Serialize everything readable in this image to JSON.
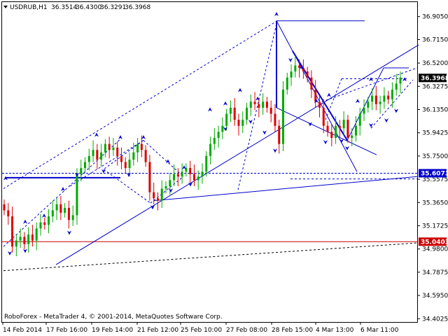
{
  "chart_data": {
    "type": "candlestick",
    "title": "USDRUB,H1",
    "ohlc": {
      "open": "36.3514",
      "high": "36.4300",
      "low": "36.3291",
      "close": "36.3968"
    },
    "footer": "RoboForex - MetaTrader 4, © 2001-2014, MetaQuotes Software Corp.",
    "ylim": [
      34.375,
      37.025
    ],
    "y_ticks": [
      "36.9050",
      "36.7150",
      "36.5200",
      "36.3275",
      "36.1350",
      "35.9425",
      "35.7500",
      "35.5575",
      "35.3650",
      "35.1725",
      "34.9800",
      "34.7875",
      "34.5950",
      "34.4025"
    ],
    "x_ticks": [
      "14 Feb 2014",
      "17 Feb 16:00",
      "19 Feb 14:00",
      "21 Feb 12:00",
      "25 Feb 10:00",
      "27 Feb 08:00",
      "28 Feb 15:00",
      "4 Mar 13:00",
      "6 Mar 11:00"
    ],
    "price_tags": [
      {
        "value": "36.3968",
        "y": 36.3968,
        "bg": "#000000",
        "fg": "#ffffff"
      },
      {
        "value": "35.6073",
        "y": 35.6073,
        "bg": "#0000cc",
        "fg": "#ffffff"
      },
      {
        "value": "35.0403",
        "y": 35.0403,
        "bg": "#cc0000",
        "fg": "#ffffff"
      }
    ],
    "horizontal_levels": [
      {
        "y": 35.6073,
        "color": "#0000cc",
        "style": "dashed"
      },
      {
        "y": 35.0403,
        "color": "#cc0000",
        "style": "solid"
      }
    ],
    "series_close": [
      35.3,
      35.25,
      35.0,
      35.05,
      35.08,
      35.02,
      35.1,
      35.05,
      35.15,
      35.2,
      35.18,
      35.25,
      35.3,
      35.35,
      35.28,
      35.32,
      35.22,
      35.26,
      35.6,
      35.65,
      35.7,
      35.75,
      35.8,
      35.72,
      35.78,
      35.85,
      35.8,
      35.82,
      35.75,
      35.7,
      35.65,
      35.72,
      35.78,
      35.85,
      35.8,
      35.7,
      35.45,
      35.4,
      35.38,
      35.48,
      35.5,
      35.55,
      35.6,
      35.58,
      35.62,
      35.65,
      35.6,
      35.55,
      35.58,
      35.62,
      35.75,
      35.85,
      35.9,
      35.95,
      36.0,
      36.1,
      36.15,
      36.05,
      36.0,
      36.05,
      36.15,
      36.2,
      36.18,
      36.15,
      36.2,
      36.15,
      36.1,
      36.0,
      35.85,
      36.3,
      36.4,
      36.45,
      36.5,
      36.48,
      36.45,
      36.4,
      36.3,
      36.2,
      36.15,
      36.0,
      35.95,
      35.9,
      36.0,
      35.98,
      36.05,
      35.9,
      35.92,
      36.0,
      36.1,
      36.15,
      36.2,
      36.25,
      36.18,
      36.2,
      36.25,
      36.22,
      36.3,
      36.35,
      36.4
    ],
    "trend_lines": [
      {
        "from": [
          8,
          35.57
        ],
        "to": [
          172,
          35.57
        ],
        "color": "#0000cc",
        "style": "solid",
        "width": 2
      },
      {
        "from": [
          395,
          36.87
        ],
        "to": [
          521,
          36.87
        ],
        "color": "#0000cc",
        "style": "solid",
        "width": 1
      },
      {
        "from": [
          395,
          36.87
        ],
        "to": [
          395,
          36.15
        ],
        "color": "#0000cc",
        "style": "solid",
        "width": 2
      },
      {
        "from": [
          395,
          36.15
        ],
        "to": [
          538,
          35.76
        ],
        "color": "#0000cc",
        "style": "solid",
        "width": 1
      },
      {
        "from": [
          395,
          36.87
        ],
        "to": [
          510,
          35.62
        ],
        "color": "#0000cc",
        "style": "solid",
        "width": 1
      },
      {
        "from": [
          418,
          36.62
        ],
        "to": [
          496,
          35.88
        ],
        "color": "#0000cc",
        "style": "solid",
        "width": 2
      },
      {
        "from": [
          496,
          35.88
        ],
        "to": [
          548,
          36.48
        ],
        "color": "#0000cc",
        "style": "solid",
        "width": 1
      },
      {
        "from": [
          548,
          36.48
        ],
        "to": [
          584,
          36.48
        ],
        "color": "#0000cc",
        "style": "solid",
        "width": 1
      },
      {
        "from": [
          80,
          34.85
        ],
        "to": [
          598,
          36.67
        ],
        "color": "#0000cc",
        "style": "solid",
        "width": 1
      },
      {
        "from": [
          220,
          35.38
        ],
        "to": [
          596,
          35.58
        ],
        "color": "#0000cc",
        "style": "solid",
        "width": 1
      },
      {
        "from": [
          415,
          35.56
        ],
        "to": [
          596,
          35.56
        ],
        "color": "#0000cc",
        "style": "dashed",
        "width": 1
      },
      {
        "from": [
          5,
          34.8
        ],
        "to": [
          596,
          35.03
        ],
        "color": "#000000",
        "style": "dashed",
        "width": 1
      },
      {
        "from": [
          5,
          35.48
        ],
        "to": [
          396,
          36.87
        ],
        "color": "#0000cc",
        "style": "dashed",
        "width": 1
      },
      {
        "from": [
          340,
          35.47
        ],
        "to": [
          396,
          36.87
        ],
        "color": "#0000cc",
        "style": "dashed",
        "width": 1
      },
      {
        "from": [
          5,
          35.0
        ],
        "to": [
          172,
          35.89
        ],
        "color": "#0000cc",
        "style": "dashed",
        "width": 1
      },
      {
        "from": [
          8,
          35.57
        ],
        "to": [
          160,
          35.57
        ],
        "color": "#0000cc",
        "style": "dashed",
        "width": 1
      },
      {
        "from": [
          100,
          35.5
        ],
        "to": [
          205,
          35.88
        ],
        "color": "#0000cc",
        "style": "dashed",
        "width": 1
      },
      {
        "from": [
          205,
          35.88
        ],
        "to": [
          262,
          35.58
        ],
        "color": "#0000cc",
        "style": "dashed",
        "width": 1
      },
      {
        "from": [
          205,
          35.88
        ],
        "to": [
          148,
          35.64
        ],
        "color": "#0000cc",
        "style": "dashed",
        "width": 1
      },
      {
        "from": [
          148,
          35.64
        ],
        "to": [
          215,
          35.36
        ],
        "color": "#0000cc",
        "style": "dashed",
        "width": 1
      },
      {
        "from": [
          215,
          35.36
        ],
        "to": [
          262,
          35.58
        ],
        "color": "#0000cc",
        "style": "dashed",
        "width": 1
      },
      {
        "from": [
          488,
          36.39
        ],
        "to": [
          584,
          36.39
        ],
        "color": "#0000cc",
        "style": "dashed",
        "width": 1
      },
      {
        "from": [
          460,
          36.2
        ],
        "to": [
          596,
          36.48
        ],
        "color": "#0000cc",
        "style": "dashed",
        "width": 1
      },
      {
        "from": [
          488,
          36.39
        ],
        "to": [
          465,
          36.05
        ],
        "color": "#0000cc",
        "style": "dashed",
        "width": 1
      },
      {
        "from": [
          530,
          35.98
        ],
        "to": [
          590,
          36.38
        ],
        "color": "#0000cc",
        "style": "dashed",
        "width": 1
      }
    ],
    "fractal_markers": [
      {
        "x": 8,
        "y": 35.56,
        "dir": "up"
      },
      {
        "x": 14,
        "y": 34.95,
        "dir": "down"
      },
      {
        "x": 36,
        "y": 35.2,
        "dir": "up"
      },
      {
        "x": 36,
        "y": 34.97,
        "dir": "down"
      },
      {
        "x": 63,
        "y": 35.25,
        "dir": "up"
      },
      {
        "x": 90,
        "y": 35.47,
        "dir": "up"
      },
      {
        "x": 99,
        "y": 35.12,
        "dir": "down"
      },
      {
        "x": 110,
        "y": 35.6,
        "dir": "down"
      },
      {
        "x": 138,
        "y": 35.92,
        "dir": "up"
      },
      {
        "x": 148,
        "y": 35.63,
        "dir": "down"
      },
      {
        "x": 172,
        "y": 35.9,
        "dir": "up"
      },
      {
        "x": 184,
        "y": 35.6,
        "dir": "down"
      },
      {
        "x": 205,
        "y": 35.9,
        "dir": "up"
      },
      {
        "x": 218,
        "y": 35.33,
        "dir": "down"
      },
      {
        "x": 240,
        "y": 35.7,
        "dir": "up"
      },
      {
        "x": 244,
        "y": 35.47,
        "dir": "down"
      },
      {
        "x": 263,
        "y": 35.65,
        "dir": "up"
      },
      {
        "x": 272,
        "y": 35.52,
        "dir": "down"
      },
      {
        "x": 300,
        "y": 36.13,
        "dir": "up"
      },
      {
        "x": 322,
        "y": 36.18,
        "dir": "up"
      },
      {
        "x": 322,
        "y": 35.98,
        "dir": "down"
      },
      {
        "x": 343,
        "y": 36.29,
        "dir": "up"
      },
      {
        "x": 358,
        "y": 36.04,
        "dir": "down"
      },
      {
        "x": 368,
        "y": 36.22,
        "dir": "up"
      },
      {
        "x": 378,
        "y": 35.95,
        "dir": "down"
      },
      {
        "x": 395,
        "y": 36.92,
        "dir": "up"
      },
      {
        "x": 393,
        "y": 35.8,
        "dir": "down"
      },
      {
        "x": 415,
        "y": 36.55,
        "dir": "down"
      },
      {
        "x": 431,
        "y": 36.48,
        "dir": "up"
      },
      {
        "x": 443,
        "y": 36.02,
        "dir": "down"
      },
      {
        "x": 452,
        "y": 36.2,
        "dir": "up"
      },
      {
        "x": 465,
        "y": 35.87,
        "dir": "down"
      },
      {
        "x": 470,
        "y": 36.25,
        "dir": "up"
      },
      {
        "x": 488,
        "y": 35.88,
        "dir": "down"
      },
      {
        "x": 496,
        "y": 35.82,
        "dir": "down"
      },
      {
        "x": 511,
        "y": 36.2,
        "dir": "up"
      },
      {
        "x": 530,
        "y": 36.38,
        "dir": "up"
      },
      {
        "x": 530,
        "y": 36.01,
        "dir": "down"
      },
      {
        "x": 552,
        "y": 36.05,
        "dir": "down"
      },
      {
        "x": 566,
        "y": 36.13,
        "dir": "down"
      },
      {
        "x": 578,
        "y": 36.38,
        "dir": "up"
      }
    ]
  }
}
